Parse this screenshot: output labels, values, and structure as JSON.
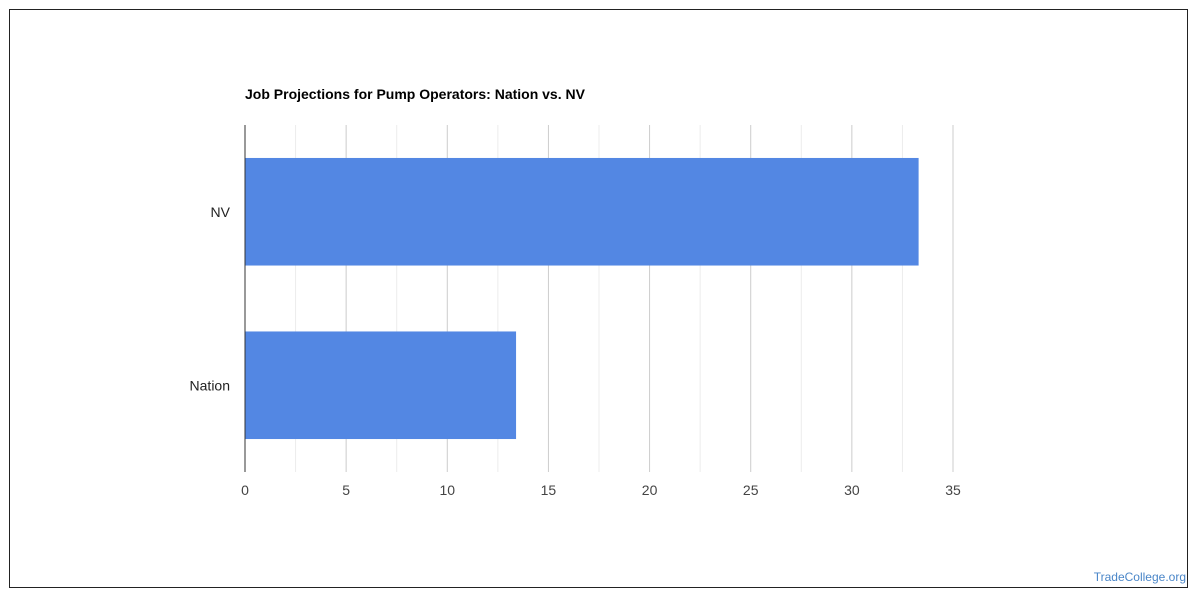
{
  "chart_data": {
    "type": "bar",
    "orientation": "horizontal",
    "title": "Job Projections for Pump Operators: Nation vs. NV",
    "categories": [
      "NV",
      "Nation"
    ],
    "values": [
      33.3,
      13.4
    ],
    "xlim": [
      0,
      35
    ],
    "xticks": [
      0,
      5,
      10,
      15,
      20,
      25,
      30,
      35
    ],
    "grid": true,
    "legend": "none",
    "bar_color": "#5387e3"
  },
  "watermark": "TradeCollege.org"
}
